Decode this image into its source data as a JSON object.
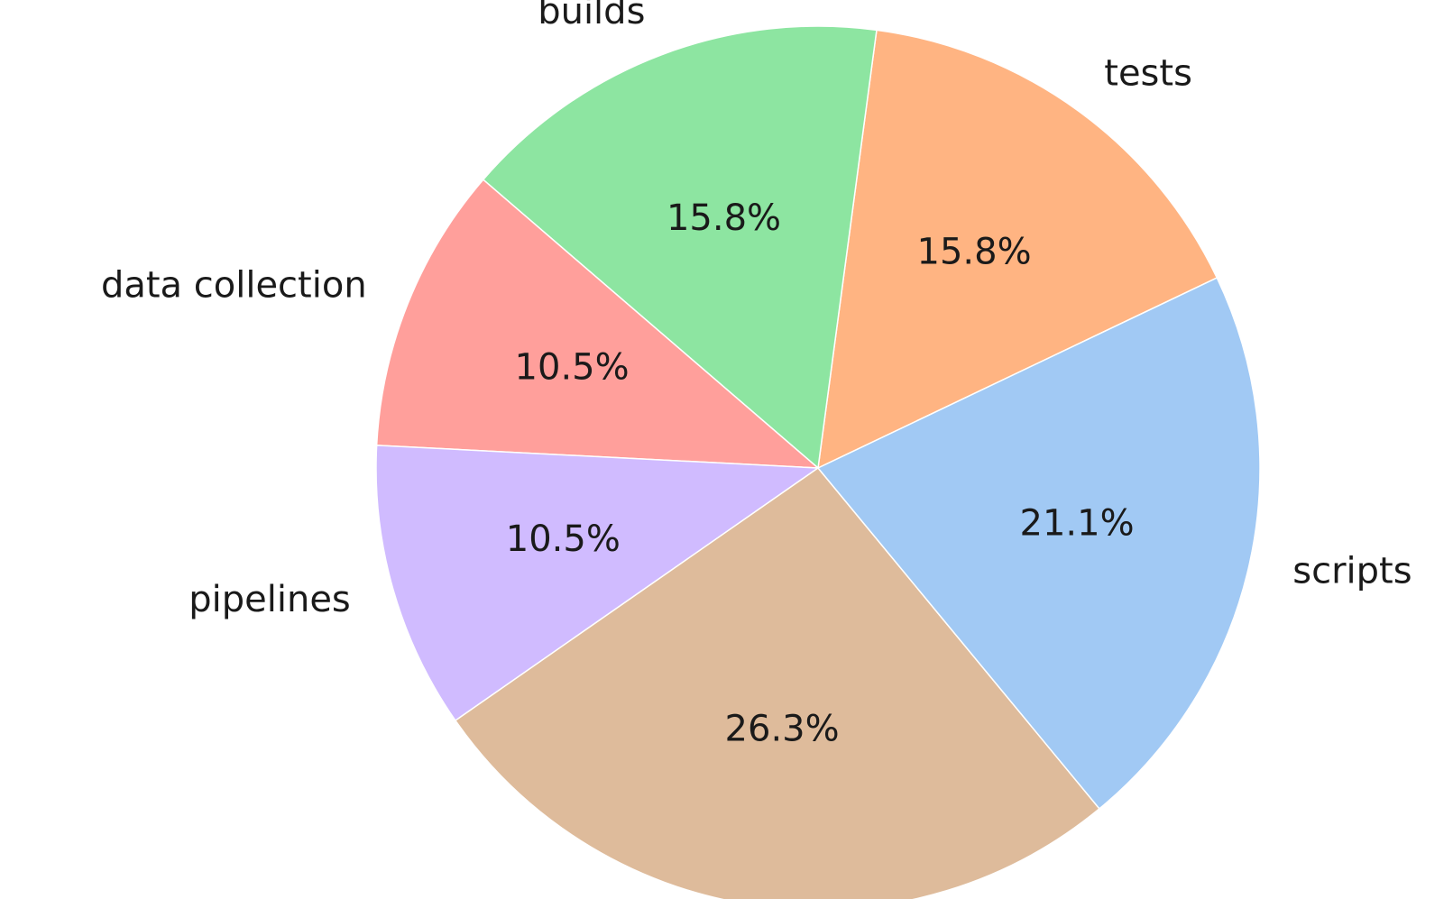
{
  "chart_data": {
    "type": "pie",
    "categories": [
      "tests",
      "builds",
      "data collection",
      "pipelines",
      null,
      "scripts"
    ],
    "values": [
      15.8,
      15.8,
      10.5,
      10.5,
      26.3,
      21.1
    ],
    "value_labels": [
      "15.8%",
      "15.8%",
      "10.5%",
      "10.5%",
      "26.3%",
      "21.1%"
    ],
    "colors": [
      "#ffb482",
      "#8de5a1",
      "#ff9f9b",
      "#d0bbff",
      "#debb9b",
      "#a1c9f4"
    ],
    "startangle": 25.5
  }
}
